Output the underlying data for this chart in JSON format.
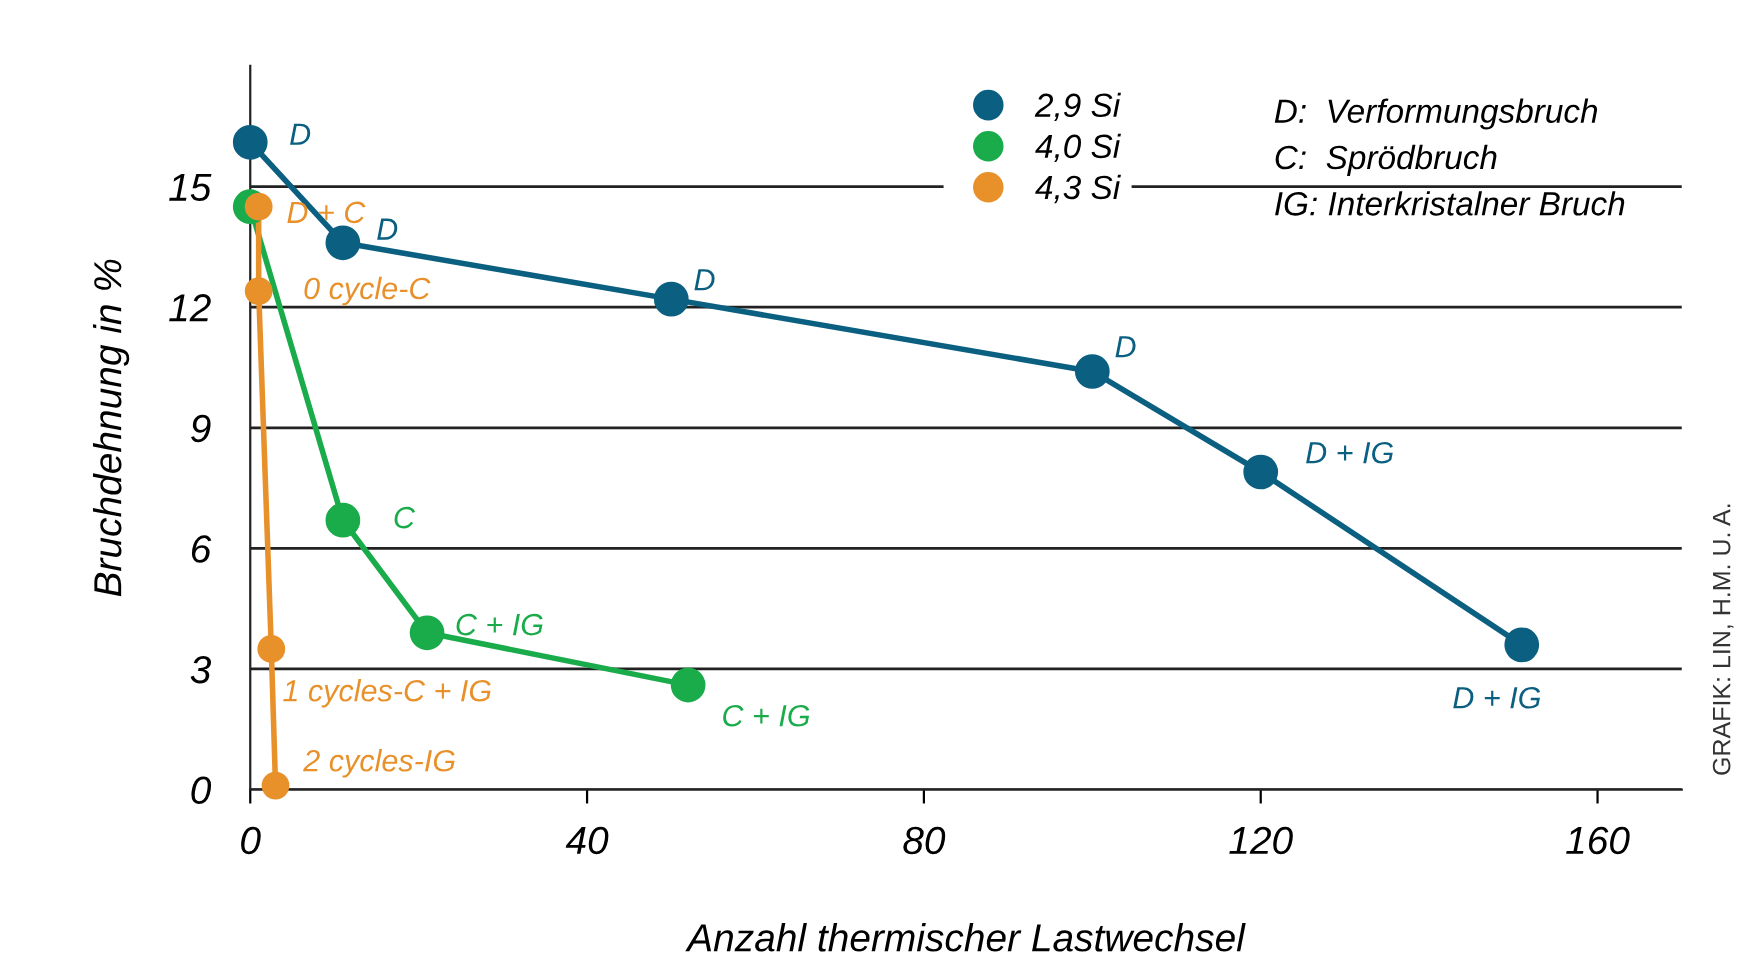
{
  "chart_data": {
    "type": "line",
    "xlabel": "Anzahl thermischer Lastwechsel",
    "ylabel": "Bruchdehnung in %",
    "series": [
      {
        "name": "2,9 Si",
        "color": "#0b5f80",
        "x": [
          0,
          11,
          50,
          100,
          120,
          151
        ],
        "values": [
          16.1,
          13.6,
          12.2,
          10.4,
          7.9,
          3.6
        ]
      },
      {
        "name": "4,0 Si",
        "color": "#1aab4b",
        "x": [
          0,
          11,
          21,
          52
        ],
        "values": [
          14.5,
          6.7,
          3.9,
          2.6
        ]
      },
      {
        "name": "4,3 Si",
        "color": "#e8912a",
        "x": [
          1,
          1,
          2.5,
          3
        ],
        "values": [
          14.5,
          12.4,
          3.5,
          0.1
        ]
      }
    ],
    "xlim": [
      0,
      170
    ],
    "ylim": [
      0,
      18
    ],
    "xticks": [
      0,
      40,
      80,
      120,
      160
    ],
    "yticks": [
      0,
      3,
      6,
      9,
      12,
      15
    ],
    "grid": "y",
    "legend": "top",
    "marker": "circle",
    "line_style": "solid",
    "annotations": [
      {
        "text": "D",
        "x": 0,
        "y": 16.1
      },
      {
        "text": "D",
        "x": 11,
        "y": 13.6
      },
      {
        "text": "D",
        "x": 50,
        "y": 12.2
      },
      {
        "text": "D",
        "x": 100,
        "y": 10.4
      },
      {
        "text": "D + IG",
        "x": 120,
        "y": 7.9
      },
      {
        "text": "D + IG",
        "x": 151,
        "y": 3.6
      },
      {
        "text": "C",
        "x": 11,
        "y": 6.7
      },
      {
        "text": "C + IG",
        "x": 21,
        "y": 3.9
      },
      {
        "text": "C + IG",
        "x": 52,
        "y": 2.6
      },
      {
        "text": "D + C",
        "x": 1,
        "y": 14.5
      },
      {
        "text": "0 cycle-C",
        "x": 1,
        "y": 12.4
      },
      {
        "text": "1 cycles-C + IG",
        "x": 2.5,
        "y": 3.5
      },
      {
        "text": "2 cycles-IG",
        "x": 3,
        "y": 0.1
      },
      "D:  Verformungsbruch",
      "C:  Sprödbruch",
      "IG: Interkristalner Bruch",
      "GRAFIK: LIN, H.M. U. A."
    ]
  }
}
